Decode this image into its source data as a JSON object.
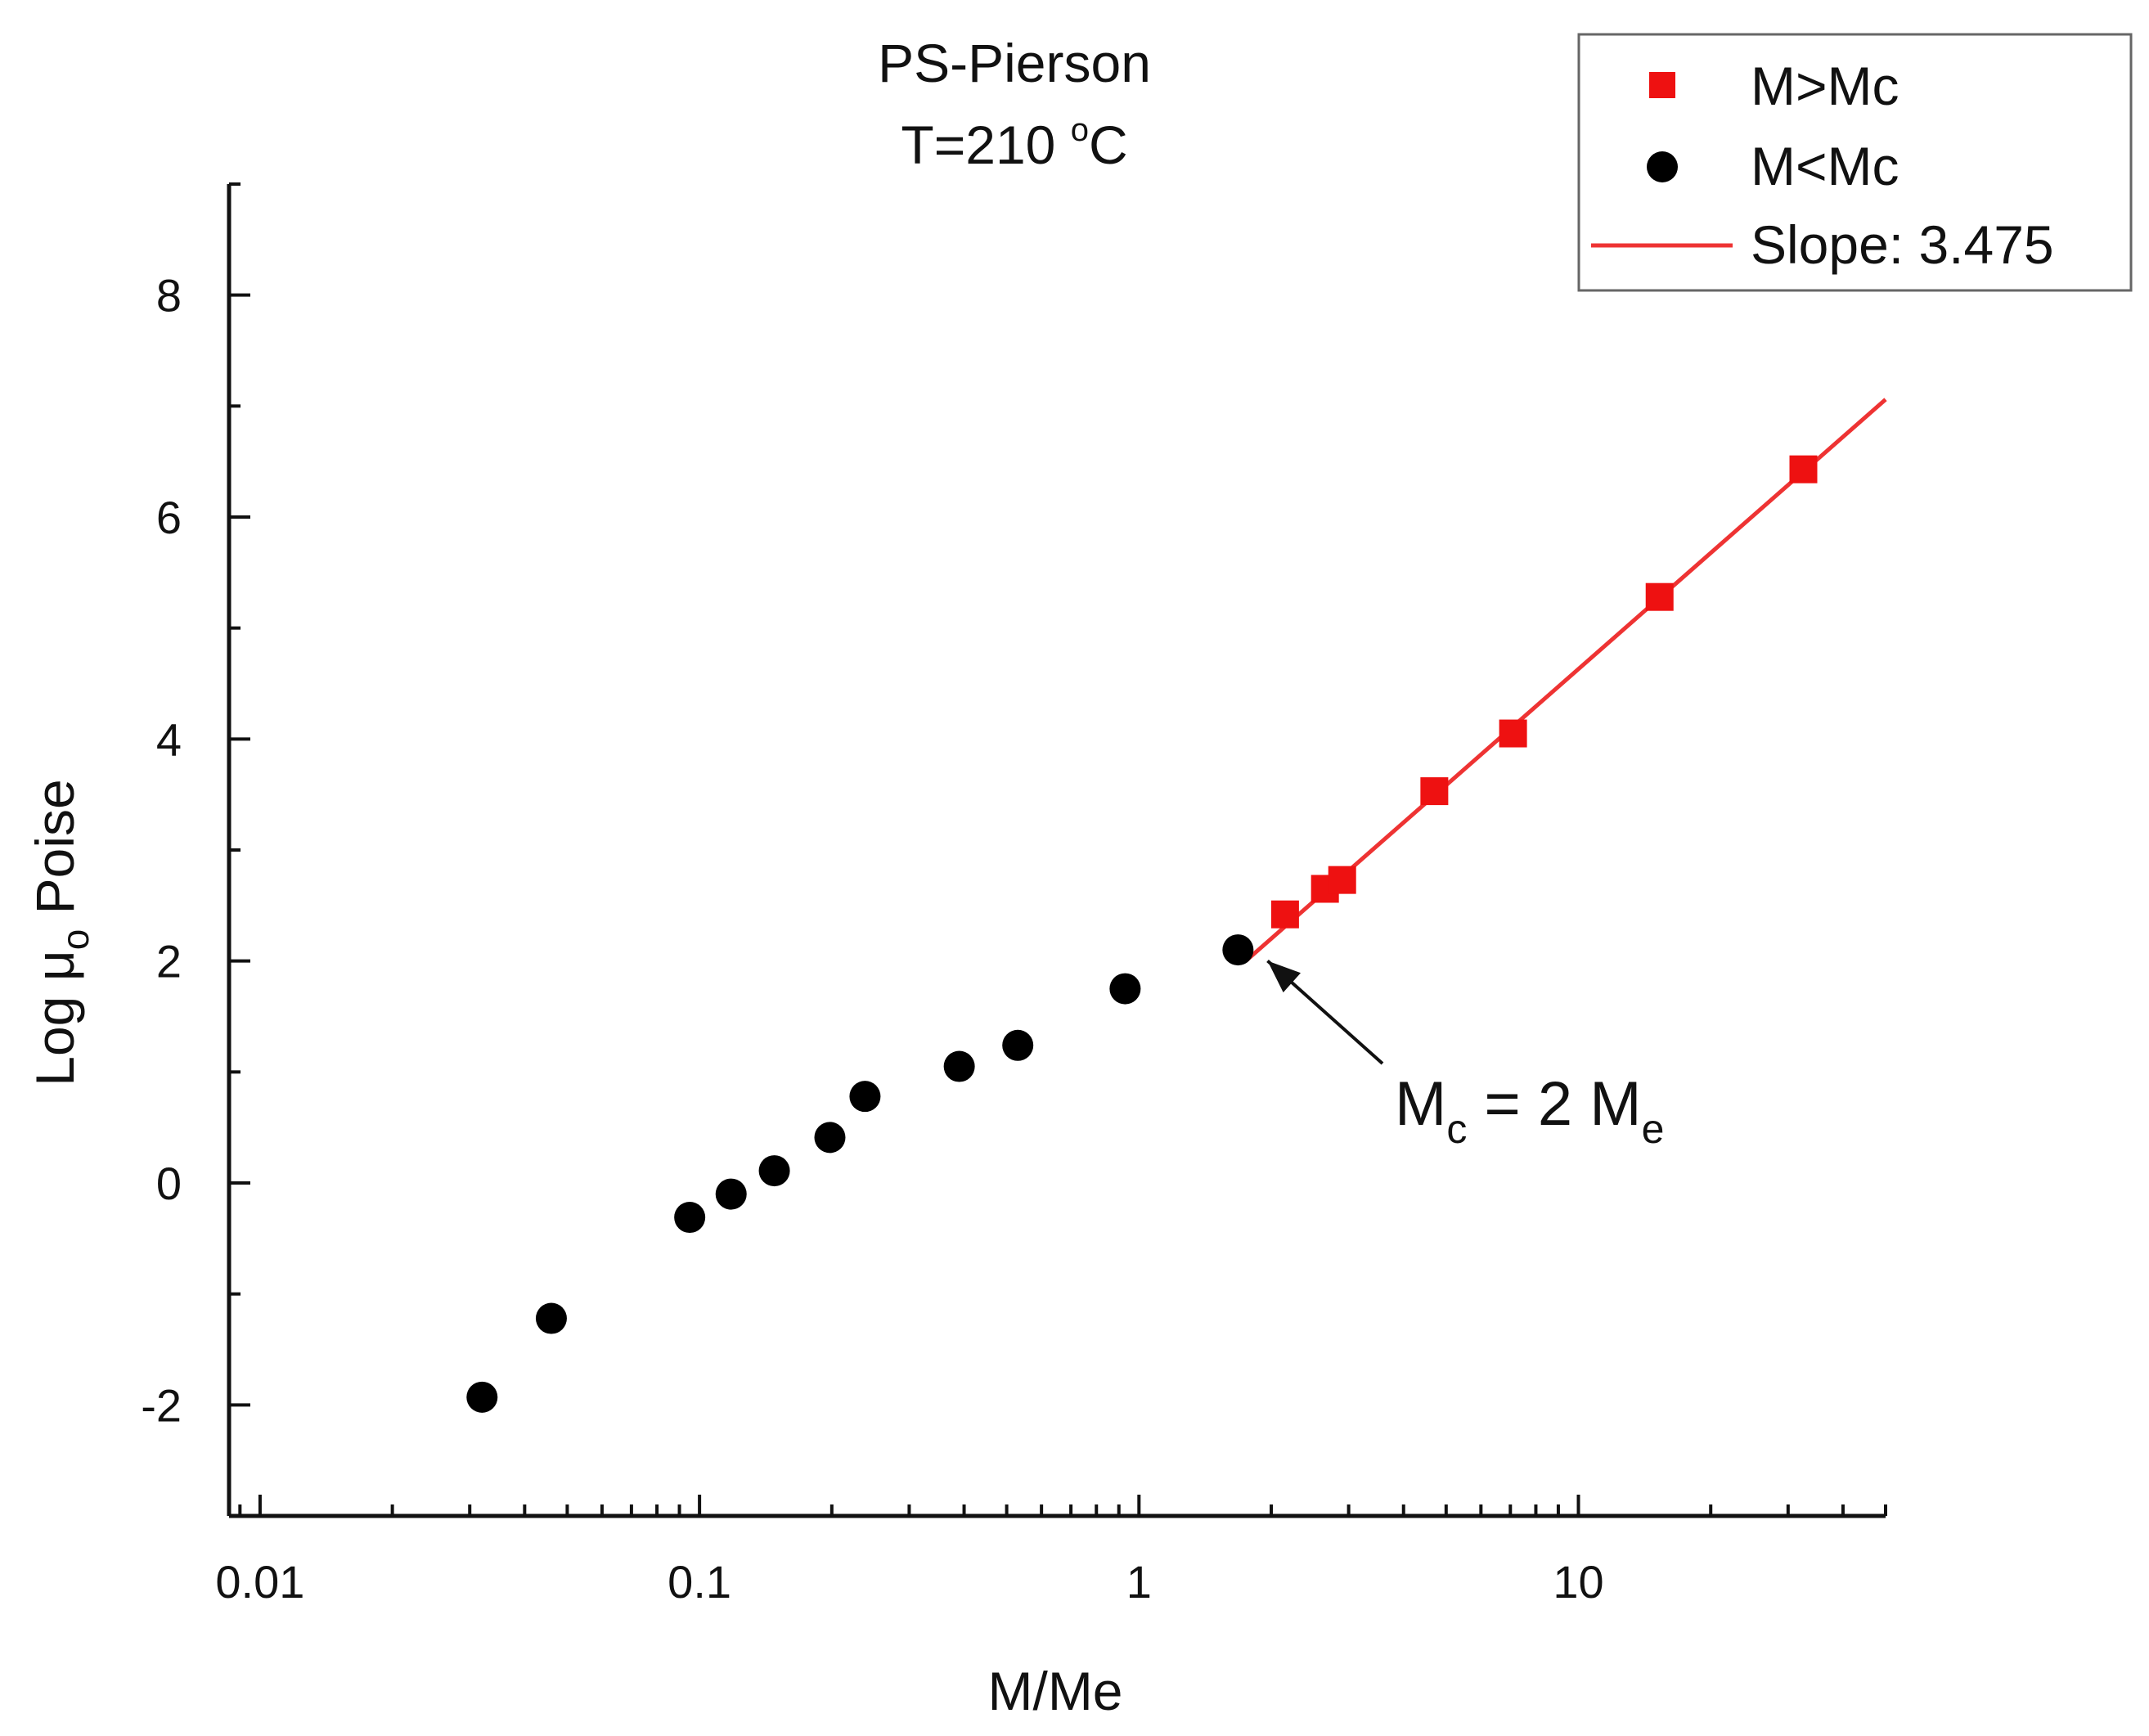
{
  "chart_data": {
    "type": "scatter",
    "title": "PS-Pierson",
    "subtitle_prefix": "T=210 ",
    "subtitle_degree": "o",
    "subtitle_suffix": "C",
    "xlabel": "M/Me",
    "ylabel_prefix": "Log μ",
    "ylabel_subscript": "o",
    "ylabel_suffix": " Poise",
    "x_scale": "log",
    "xlim": [
      0.0085,
      50
    ],
    "ylim": [
      -3,
      9
    ],
    "x_ticks": [
      0.01,
      0.1,
      1,
      10
    ],
    "x_tick_labels": [
      "0.01",
      "0.1",
      "1",
      "10"
    ],
    "y_ticks": [
      -2,
      0,
      2,
      4,
      6,
      8
    ],
    "y_tick_labels": [
      "-2",
      "0",
      "2",
      "4",
      "6",
      "8"
    ],
    "legend_position": "top-right",
    "series": [
      {
        "name": "M>Mc",
        "marker": "square",
        "color": "#ee1111",
        "points": [
          {
            "x": 2.15,
            "y": 2.42
          },
          {
            "x": 2.65,
            "y": 2.65
          },
          {
            "x": 2.9,
            "y": 2.73
          },
          {
            "x": 4.7,
            "y": 3.53
          },
          {
            "x": 7.1,
            "y": 4.05
          },
          {
            "x": 15.3,
            "y": 5.28
          },
          {
            "x": 32.5,
            "y": 6.43
          }
        ]
      },
      {
        "name": "M<Mc",
        "marker": "circle",
        "color": "#000000",
        "points": [
          {
            "x": 0.032,
            "y": -1.93
          },
          {
            "x": 0.046,
            "y": -1.22
          },
          {
            "x": 0.095,
            "y": -0.31
          },
          {
            "x": 0.118,
            "y": -0.1
          },
          {
            "x": 0.148,
            "y": 0.11
          },
          {
            "x": 0.198,
            "y": 0.41
          },
          {
            "x": 0.238,
            "y": 0.78
          },
          {
            "x": 0.39,
            "y": 1.05
          },
          {
            "x": 0.53,
            "y": 1.24
          },
          {
            "x": 0.93,
            "y": 1.75
          },
          {
            "x": 1.68,
            "y": 2.1
          }
        ]
      }
    ],
    "fit_line": {
      "name": "Slope: 3.475",
      "slope": 3.475,
      "color": "#ee3333",
      "x_start": 1.75,
      "y_start": 2.0,
      "x_end": 50
    },
    "annotation": {
      "text_m": "M",
      "text_c": "c",
      "text_mid": " = 2 M",
      "text_e": "e",
      "arrow_to": {
        "x": 1.9,
        "y": 2.05
      }
    }
  }
}
